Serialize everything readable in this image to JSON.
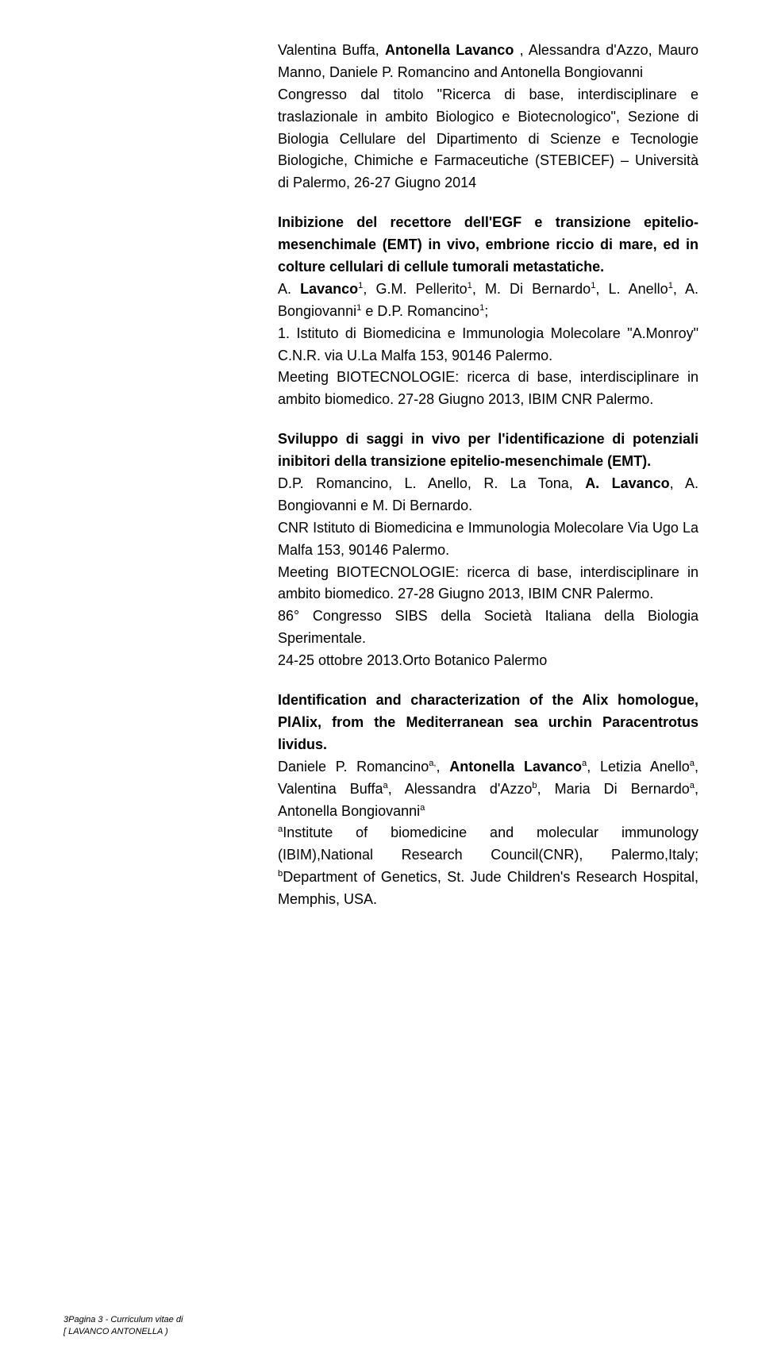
{
  "colors": {
    "text": "#000000",
    "background": "#ffffff"
  },
  "typography": {
    "body_fontsize_pt": 18,
    "line_height": 1.55,
    "footer_fontsize_pt": 11
  },
  "paragraphs": {
    "p1": {
      "a": "Valentina Buffa, ",
      "b": "Antonella Lavanco",
      "c": " , Alessandra d'Azzo, Mauro Manno, Daniele P. Romancino and Antonella Bongiovanni",
      "d": "Congresso dal titolo \"Ricerca di base, interdisciplinare e traslazionale in ambito Biologico e Biotecnologico\", Sezione di Biologia Cellulare del Dipartimento di Scienze e Tecnologie Biologiche, Chimiche e Farmaceutiche (STEBICEF) – Università di Palermo, 26-27 Giugno 2014"
    },
    "p2": {
      "title": "Inibizione del recettore dell'EGF e transizione epitelio-mesenchimale (EMT) in vivo, embrione riccio di mare, ed in colture cellulari di cellule tumorali metastatiche.",
      "authors_pre": "A.  ",
      "authors_boldname": "Lavanco",
      "authors_sup1": "1",
      "authors_mid1": ",  G.M.  Pellerito",
      "authors_mid2": ",  M.  Di  Bernardo",
      "authors_mid3": ",  L.  Anello",
      "authors_mid4": ",  A. Bongiovanni",
      "authors_mid5": " e D.P. Romancino",
      "authors_end": ";",
      "aff1a": "1.  Istituto  di  Biomedicina  e  Immunologia  Molecolare  \"A.Monroy\" C.N.R. via U.La Malfa 153, 90146 Palermo.",
      "meet1": "Meeting BIOTECNOLOGIE: ricerca di base, interdisciplinare in ambito biomedico. 27-28 Giugno 2013, IBIM CNR Palermo."
    },
    "p3": {
      "title": "Sviluppo  di    saggi    in  vivo  per  l'identificazione  di    potenziali inibitori della transizione epitelio-mesenchimale (EMT).",
      "authors_a": "D.P. Romancino,  L. Anello,  R. La Tona, ",
      "authors_b": "A. Lavanco",
      "authors_c": ",  A. Bongiovanni e M. Di Bernardo.",
      "aff": "CNR Istituto di Biomedicina e Immunologia Molecolare Via Ugo La Malfa 153, 90146 Palermo.",
      "meet": "Meeting BIOTECNOLOGIE: ricerca di base, interdisciplinare in ambito biomedico. 27-28 Giugno 2013, IBIM CNR Palermo.",
      "conf1": "86° Congresso SIBS della Società Italiana della Biologia Sperimentale.",
      "conf2": "24-25 ottobre 2013.Orto Botanico Palermo"
    },
    "p4": {
      "title": "Identification and characterization of the Alix homologue, PlAlix, from the Mediterranean sea urchin Paracentrotus lividus.",
      "auth_pre": "Daniele P. Romancino",
      "sup_a": "a,",
      "auth_mid1": ", ",
      "bold1": "Antonella Lavanco",
      "sup_a2": "a",
      "auth_mid2": ", Letizia Anello",
      "auth_mid3": ", Valentina Buffa",
      "auth_mid4": ", Alessandra d'Azzo",
      "sup_b": "b",
      "auth_mid5": ", Maria Di Bernardo",
      "auth_mid6": ", Antonella Bongiovanni",
      "aff_a_sup": "a",
      "aff_a": "Institute  of  biomedicine  and  molecular  immunology  (IBIM),National Research  Council(CNR),  Palermo,Italy;  ",
      "aff_b_sup": "b",
      "aff_b": "Department  of  Genetics,  St. Jude Children's Research Hospital, Memphis, USA."
    }
  },
  "footer": {
    "page_number": "3",
    "line1_a": "Pagina 3 - Curriculum vitae di",
    "line2": "[ LAVANCO ANTONELLA )"
  }
}
